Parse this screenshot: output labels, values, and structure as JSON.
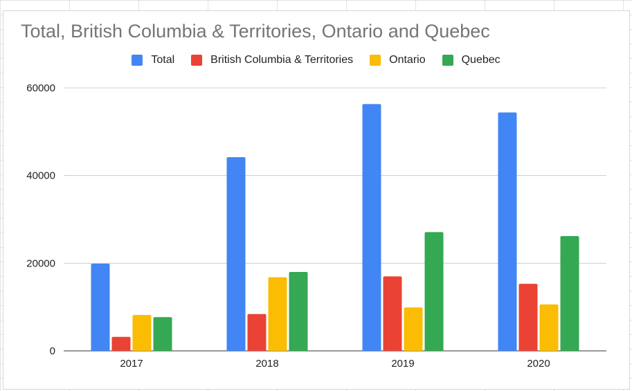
{
  "chart_data": {
    "type": "bar",
    "title": "Total, British Columbia & Territories, Ontario and Quebec",
    "xlabel": "",
    "ylabel": "",
    "categories": [
      "2017",
      "2018",
      "2019",
      "2020"
    ],
    "series": [
      {
        "name": "Total",
        "color": "#4285f4",
        "values": [
          19900,
          44200,
          56300,
          54400
        ]
      },
      {
        "name": "British Columbia & Territories",
        "color": "#ea4335",
        "values": [
          3200,
          8400,
          17000,
          15300
        ]
      },
      {
        "name": "Ontario",
        "color": "#fbbc04",
        "values": [
          8200,
          16800,
          9900,
          10600
        ]
      },
      {
        "name": "Quebec",
        "color": "#34a853",
        "values": [
          7700,
          18000,
          27100,
          26200
        ]
      }
    ],
    "yticks": [
      "0",
      "20000",
      "40000",
      "60000"
    ],
    "ylim": [
      0,
      60000
    ],
    "grid": true,
    "legend_position": "top"
  }
}
